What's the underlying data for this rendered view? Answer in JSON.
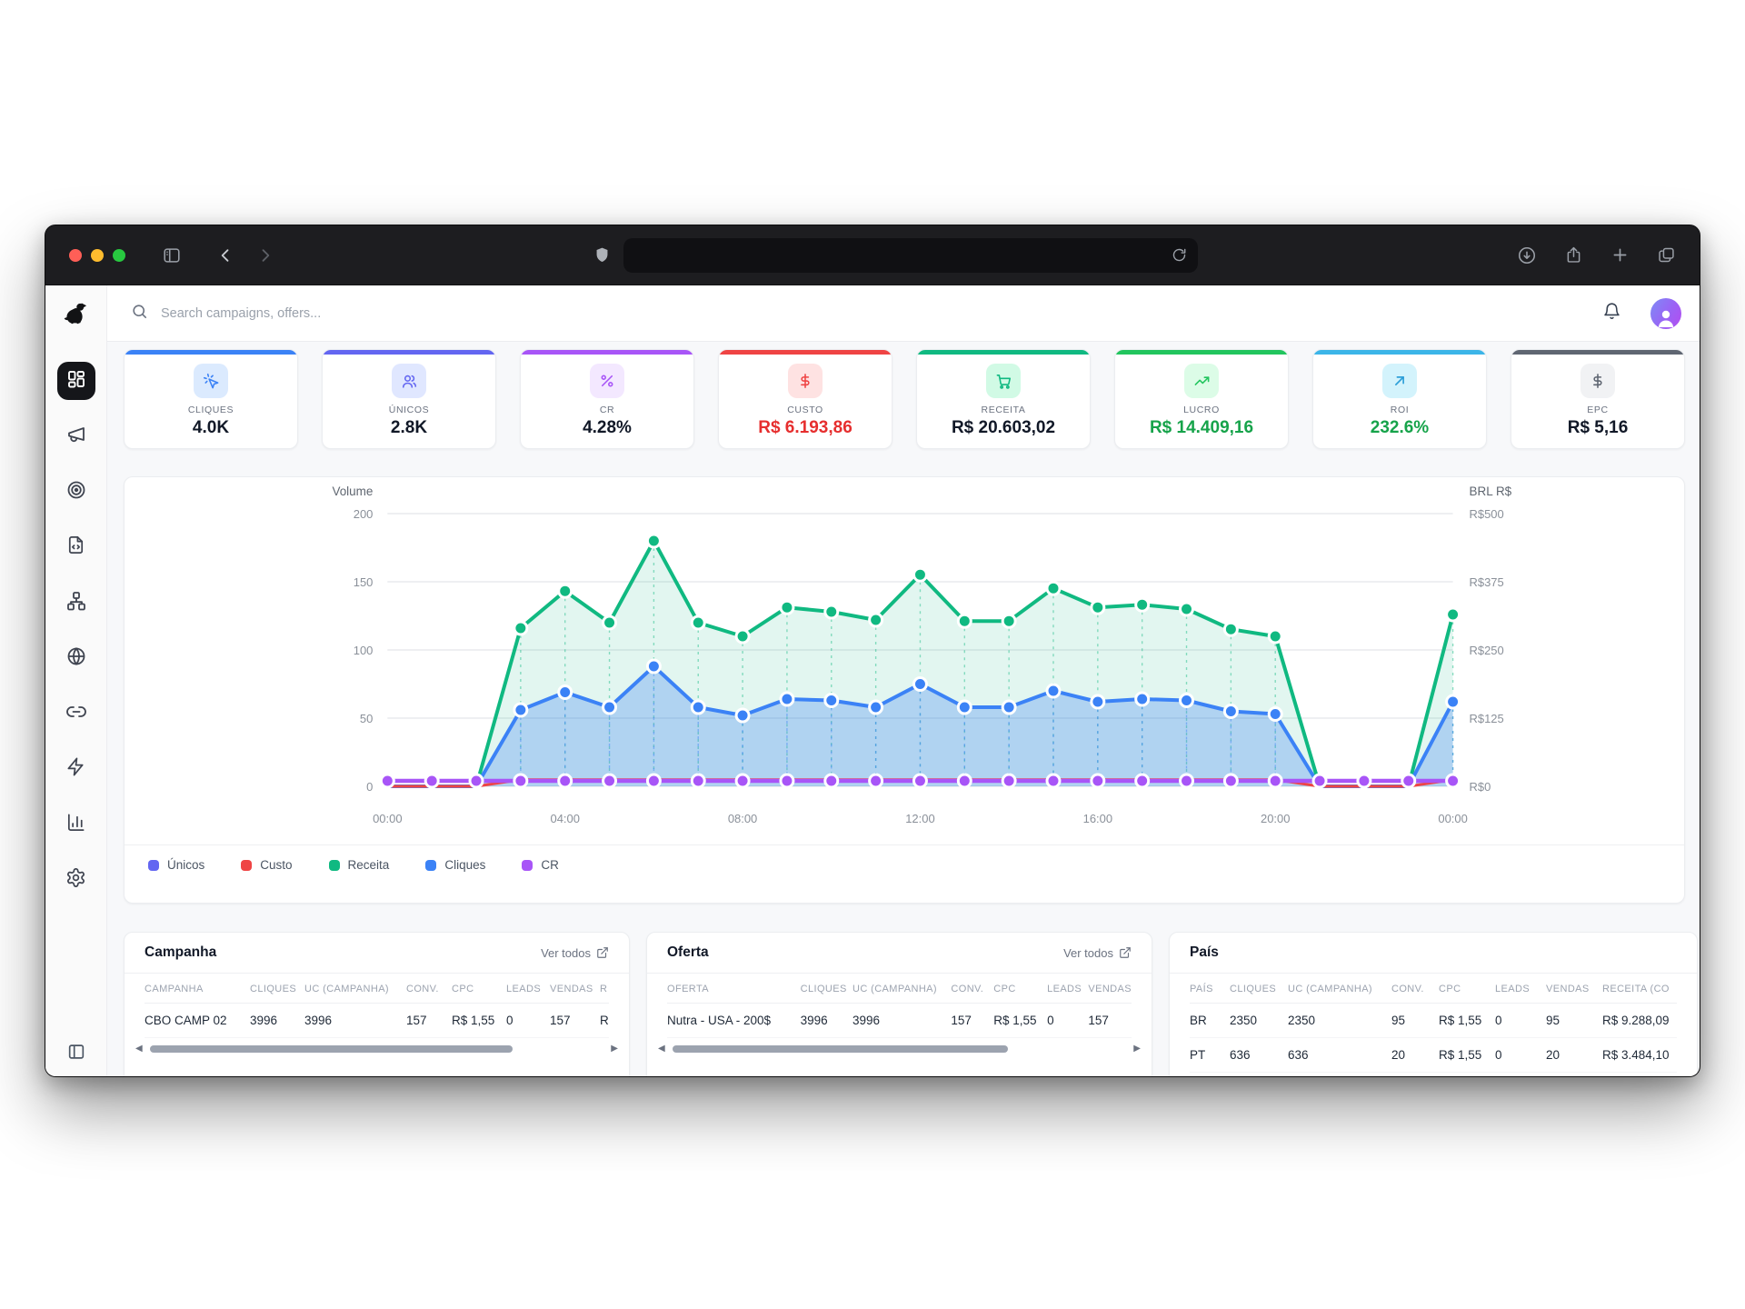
{
  "browser": {
    "url_value": "",
    "icons": {
      "traffic_close": "#ff5f57",
      "traffic_minimize": "#febc2e",
      "traffic_zoom": "#28c840"
    }
  },
  "app": {
    "logo": "dog-silhouette",
    "header": {
      "search_placeholder": "Search campaigns, offers..."
    }
  },
  "kpis": [
    {
      "label": "CLIQUES",
      "value": "4.0K",
      "accent": "#3b82f6",
      "chip_bg": "#dbeafe",
      "chip_color": "#3b82f6",
      "value_color": "#111827",
      "icon": "cursor-click"
    },
    {
      "label": "ÚNICOS",
      "value": "2.8K",
      "accent": "#6366f1",
      "chip_bg": "#e0e7ff",
      "chip_color": "#6366f1",
      "value_color": "#111827",
      "icon": "users"
    },
    {
      "label": "CR",
      "value": "4.28%",
      "accent": "#a855f7",
      "chip_bg": "#f3e8ff",
      "chip_color": "#a855f7",
      "value_color": "#111827",
      "icon": "percent"
    },
    {
      "label": "CUSTO",
      "value": "R$ 6.193,86",
      "accent": "#ef4444",
      "chip_bg": "#fee2e2",
      "chip_color": "#ef4444",
      "value_color": "#e62e2e",
      "icon": "dollar"
    },
    {
      "label": "RECEITA",
      "value": "R$ 20.603,02",
      "accent": "#10b981",
      "chip_bg": "#d1fae5",
      "chip_color": "#10b981",
      "value_color": "#111827",
      "icon": "cart"
    },
    {
      "label": "LUCRO",
      "value": "R$ 14.409,16",
      "accent": "#22c55e",
      "chip_bg": "#dcfce7",
      "chip_color": "#22c55e",
      "value_color": "#16a34a",
      "icon": "trending-up"
    },
    {
      "label": "ROI",
      "value": "232.6%",
      "accent": "#3cb5e8",
      "chip_bg": "#d3f3fc",
      "chip_color": "#2e9fd8",
      "value_color": "#16a34a",
      "icon": "arrow-up-right"
    },
    {
      "label": "EPC",
      "value": "R$ 5,16",
      "accent": "#5f6672",
      "chip_bg": "#f1f2f4",
      "chip_color": "#5f6672",
      "icon": "dollar",
      "value_color": "#111827"
    }
  ],
  "chart_data": {
    "type": "line",
    "x": [
      "00:00",
      "01:00",
      "02:00",
      "03:00",
      "04:00",
      "05:00",
      "06:00",
      "07:00",
      "08:00",
      "09:00",
      "10:00",
      "11:00",
      "12:00",
      "13:00",
      "14:00",
      "15:00",
      "16:00",
      "17:00",
      "18:00",
      "19:00",
      "20:00",
      "21:00",
      "22:00",
      "23:00",
      "00:00"
    ],
    "x_tick_labels": [
      "00:00",
      "04:00",
      "08:00",
      "12:00",
      "16:00",
      "20:00",
      "00:00"
    ],
    "left_axis": {
      "title": "Volume",
      "ticks": [
        0,
        50,
        100,
        150,
        200
      ],
      "range": [
        0,
        200
      ]
    },
    "right_axis": {
      "title": "BRL R$",
      "ticks": [
        "R$0",
        "R$125",
        "R$250",
        "R$375",
        "R$500"
      ],
      "range": [
        0,
        500
      ]
    },
    "grid": true,
    "legend_position": "bottom-left",
    "series": [
      {
        "name": "Únicos",
        "color": "#6366f1",
        "axis": "left",
        "width": 3,
        "dots": false,
        "values": [
          0,
          0,
          0,
          56,
          69,
          58,
          88,
          58,
          52,
          64,
          63,
          58,
          75,
          58,
          58,
          70,
          62,
          64,
          63,
          55,
          53,
          0,
          0,
          0,
          62
        ]
      },
      {
        "name": "Custo",
        "color": "#ef4444",
        "axis": "right",
        "width": 3,
        "dots": false,
        "values": [
          0,
          0,
          0,
          12,
          12,
          12,
          12,
          12,
          12,
          12,
          12,
          12,
          12,
          12,
          12,
          12,
          12,
          12,
          12,
          12,
          12,
          0,
          0,
          0,
          12
        ]
      },
      {
        "name": "Receita",
        "color": "#10b981",
        "axis": "right",
        "width": 4,
        "fill": true,
        "fill_opacity": 0.12,
        "values": [
          0,
          0,
          0,
          290,
          358,
          300,
          450,
          300,
          275,
          328,
          320,
          305,
          388,
          303,
          303,
          363,
          328,
          333,
          325,
          288,
          275,
          0,
          0,
          0,
          315
        ]
      },
      {
        "name": "Cliques",
        "color": "#3b82f6",
        "axis": "left",
        "width": 4,
        "fill": true,
        "fill_opacity": 0.3,
        "values": [
          0,
          0,
          0,
          56,
          69,
          58,
          88,
          58,
          52,
          64,
          63,
          58,
          75,
          58,
          58,
          70,
          62,
          64,
          63,
          55,
          53,
          0,
          0,
          0,
          62
        ]
      },
      {
        "name": "CR",
        "color": "#a855f7",
        "axis": "left",
        "width": 4.5,
        "dots": "all",
        "values": [
          4,
          4,
          4,
          4,
          4,
          4,
          4,
          4,
          4,
          4,
          4,
          4,
          4,
          4,
          4,
          4,
          4,
          4,
          4,
          4,
          4,
          4,
          4,
          4,
          4
        ]
      }
    ]
  },
  "tables": {
    "campanha": {
      "title": "Campanha",
      "link": "Ver todos",
      "columns": [
        "CAMPANHA",
        "CLIQUES",
        "UC (CAMPANHA)",
        "CONV.",
        "CPC",
        "LEADS",
        "VENDAS",
        "R"
      ],
      "rows": [
        [
          "CBO CAMP 02",
          "3996",
          "3996",
          "157",
          "R$ 1,55",
          "0",
          "157",
          "R"
        ]
      ]
    },
    "oferta": {
      "title": "Oferta",
      "link": "Ver todos",
      "columns": [
        "OFERTA",
        "CLIQUES",
        "UC (CAMPANHA)",
        "CONV.",
        "CPC",
        "LEADS",
        "VENDAS"
      ],
      "rows": [
        [
          "Nutra - USA - 200$",
          "3996",
          "3996",
          "157",
          "R$ 1,55",
          "0",
          "157"
        ]
      ]
    },
    "pais": {
      "title": "País",
      "columns": [
        "PAÍS",
        "CLIQUES",
        "UC (CAMPANHA)",
        "CONV.",
        "CPC",
        "LEADS",
        "VENDAS",
        "RECEITA (CO"
      ],
      "rows": [
        [
          "BR",
          "2350",
          "2350",
          "95",
          "R$ 1,55",
          "0",
          "95",
          "R$ 9.288,09"
        ],
        [
          "PT",
          "636",
          "636",
          "20",
          "R$ 1,55",
          "0",
          "20",
          "R$ 3.484,10"
        ]
      ]
    }
  }
}
